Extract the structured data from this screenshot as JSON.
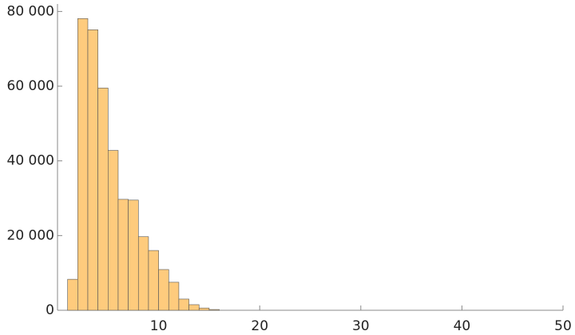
{
  "chart_data": {
    "type": "histogram",
    "bins": [
      1,
      2,
      3,
      4,
      5,
      6,
      7,
      8,
      9,
      10,
      11,
      12,
      13,
      14,
      15,
      16
    ],
    "values": [
      8300,
      78100,
      75100,
      59500,
      42800,
      29700,
      29500,
      19700,
      16000,
      10900,
      7500,
      3000,
      1500,
      600,
      200
    ],
    "color": "#fecb7d",
    "xlim": [
      0,
      50
    ],
    "xticks": [
      10,
      20,
      30,
      40,
      50
    ],
    "ylim": [
      0,
      82000
    ],
    "yticks": [
      0,
      {
        "value": 20000,
        "label": "20 000"
      },
      {
        "value": 40000,
        "label": "40 000"
      },
      {
        "value": 60000,
        "label": "60 000"
      },
      {
        "value": 80000,
        "label": "80 000"
      }
    ]
  }
}
